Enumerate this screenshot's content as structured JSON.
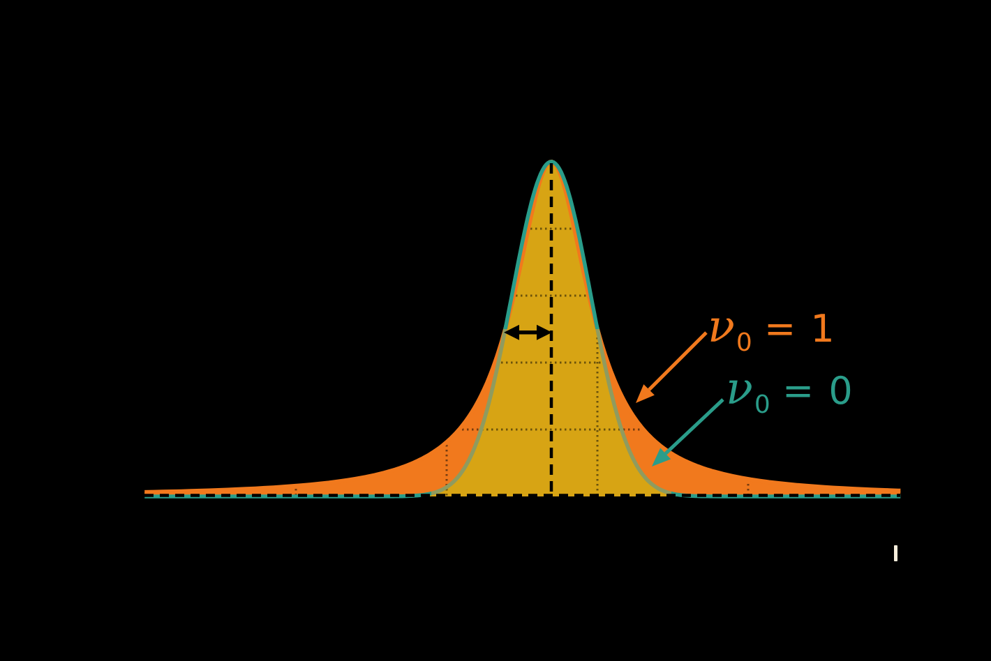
{
  "figure": {
    "background_color": "#000000",
    "title": "",
    "axis_tick": {
      "color": "#F7EEDC",
      "note": "single pale tick mark below the axis near the right edge"
    }
  },
  "chart_data": {
    "type": "line",
    "title": "",
    "xlabel": "",
    "ylabel": "",
    "x_units": "frequency offset (v - v0) in units of the half-width at half maximum (HWHM)",
    "x_range_hwhm": [
      -8.83,
      7.58
    ],
    "y_range": [
      0,
      1
    ],
    "x_gridline_spacing_hwhm": 3.273,
    "y_gridlines": [
      0.2,
      0.4,
      0.6,
      0.8,
      1.0
    ],
    "grid_style": "dark dotted gridlines, visible only where they cross the filled curves",
    "legend_position": "inline annotations with arrows, right of peak",
    "series": [
      {
        "name": "ν₀ = 1",
        "shape": "Lorentzian",
        "formula": "y = 1 / (1 + u²),  u = (ν−ν₀)/HWHM",
        "peak": 1.0,
        "center_u": 0,
        "hwhm_u": 1,
        "line_color": "#F1791D",
        "fill_color": "#F1791D"
      },
      {
        "name": "ν₀ = 0",
        "shape": "Gaussian",
        "formula": "y = exp(−ln2 · u²),  u = (ν−ν₀)/HWHM",
        "peak": 1.0,
        "center_u": 0,
        "hwhm_u": 1,
        "line_color": "#2A9D8A",
        "line_color_over_orange_fill": "#8F9B5F",
        "fill_color": "#D7A414"
      }
    ],
    "samples": {
      "u": [
        -8,
        -6,
        -4,
        -3,
        -2.5,
        -2,
        -1.5,
        -1,
        -0.5,
        0,
        0.5,
        1,
        1.5,
        2,
        2.5,
        3,
        4,
        6,
        7.5
      ],
      "lorentzian": [
        0.015,
        0.027,
        0.059,
        0.1,
        0.138,
        0.2,
        0.308,
        0.5,
        0.8,
        1.0,
        0.8,
        0.5,
        0.308,
        0.2,
        0.138,
        0.1,
        0.059,
        0.027,
        0.017
      ],
      "gaussian": [
        0,
        0,
        0,
        0.002,
        0.013,
        0.063,
        0.21,
        0.5,
        0.841,
        1.0,
        0.841,
        0.5,
        0.21,
        0.063,
        0.013,
        0.002,
        0,
        0,
        0
      ]
    },
    "annotations": [
      {
        "id": "label-nu0-1",
        "nu": "ν",
        "sub": "0",
        "rhs": " = 1",
        "color": "#F1791D",
        "arrow": "orange arrow pointing down-left to the Lorentzian wing"
      },
      {
        "id": "label-nu0-0",
        "nu": "ν",
        "sub": "0",
        "rhs": " = 0",
        "color": "#2A9D8A",
        "arrow": "teal arrow pointing down-left to the Gaussian curve"
      },
      {
        "id": "hwhm-arrow",
        "desc": "black double-headed arrow from the left half-maximum point to the peak center, drawn at half maximum height",
        "color": "#000000"
      },
      {
        "id": "center-line",
        "desc": "black dashed vertical line at the peak center",
        "color": "#000000"
      },
      {
        "id": "baseline",
        "desc": "black dashed horizontal line along the zero level",
        "color": "#000000"
      }
    ]
  }
}
